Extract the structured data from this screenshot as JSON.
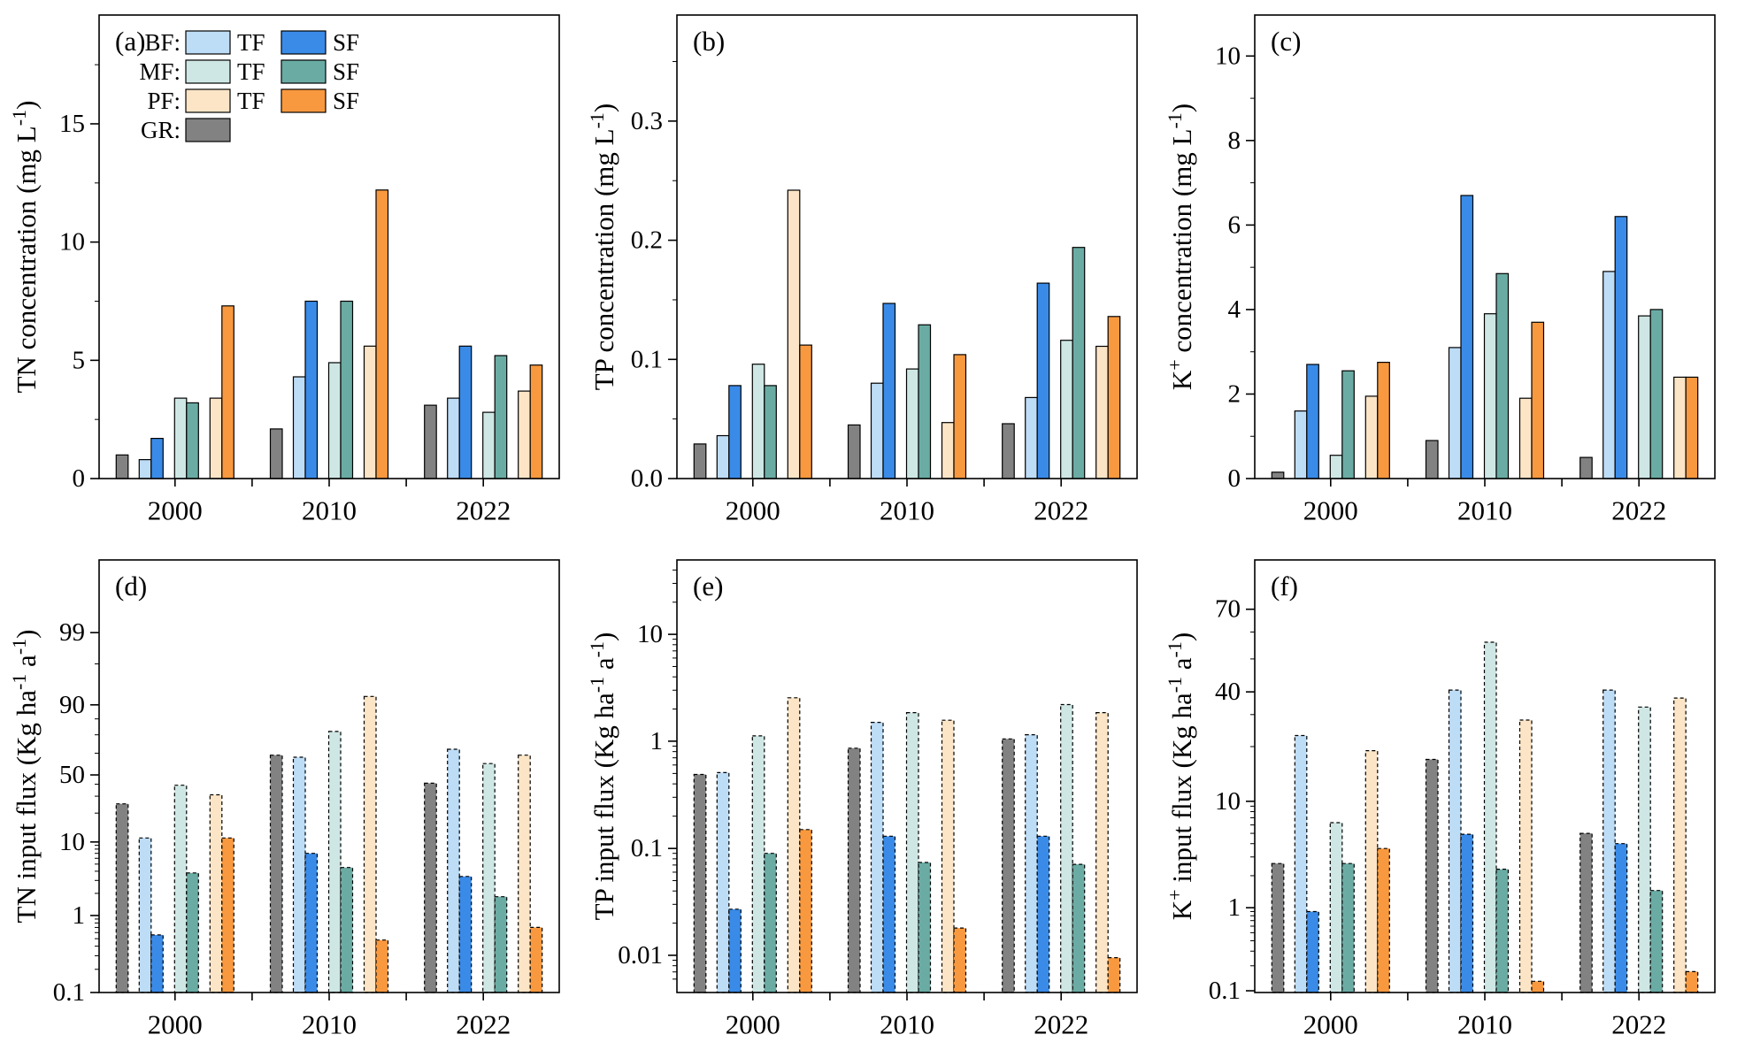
{
  "figure": {
    "background": "#ffffff"
  },
  "series_order": [
    "GR",
    "BF_TF",
    "BF_SF",
    "MF_TF",
    "MF_SF",
    "PF_TF",
    "PF_SF"
  ],
  "series_colors": {
    "GR": "#828282",
    "BF_TF": "#BDDCF6",
    "BF_SF": "#3A8BE8",
    "MF_TF": "#CEE7E4",
    "MF_SF": "#6AACA4",
    "PF_TF": "#FBE5C6",
    "PF_SF": "#F8993F",
    "edge": "#000000"
  },
  "legend": {
    "rows": [
      {
        "group": "BF:",
        "items": [
          {
            "key": "BF_TF",
            "label": "TF"
          },
          {
            "key": "BF_SF",
            "label": "SF"
          }
        ]
      },
      {
        "group": "MF:",
        "items": [
          {
            "key": "MF_TF",
            "label": "TF"
          },
          {
            "key": "MF_SF",
            "label": "SF"
          }
        ]
      },
      {
        "group": "PF:",
        "items": [
          {
            "key": "PF_TF",
            "label": "TF"
          },
          {
            "key": "PF_SF",
            "label": "SF"
          }
        ]
      },
      {
        "group": "GR:",
        "items": [
          {
            "key": "GR",
            "label": ""
          }
        ]
      }
    ]
  },
  "chart_data": [
    {
      "id": "a",
      "panel_label": "(a)",
      "type": "bar",
      "row": 0,
      "col": 0,
      "ylabel": "TN concentration (mg L⁻¹)",
      "ylabel_parts": [
        [
          "TN concentration (mg L",
          0
        ],
        [
          "-1",
          1
        ],
        [
          ")",
          0
        ]
      ],
      "scale": {
        "type": "linear",
        "min": 0,
        "max": 19.6
      },
      "yticks": [
        {
          "v": 0,
          "l": "0"
        },
        {
          "v": 5,
          "l": "5"
        },
        {
          "v": 10,
          "l": "10"
        },
        {
          "v": 15,
          "l": "15"
        }
      ],
      "minors": [
        2.5,
        7.5,
        12.5,
        17.5
      ],
      "categories": [
        "2000",
        "2010",
        "2022"
      ],
      "dashed": false,
      "series": {
        "GR": [
          1.0,
          2.1,
          3.1
        ],
        "BF_TF": [
          0.8,
          4.3,
          3.4
        ],
        "BF_SF": [
          1.7,
          7.5,
          5.6
        ],
        "MF_TF": [
          3.4,
          4.9,
          2.8
        ],
        "MF_SF": [
          3.2,
          7.5,
          5.2
        ],
        "PF_TF": [
          3.4,
          5.6,
          3.7
        ],
        "PF_SF": [
          7.3,
          12.2,
          4.8
        ]
      }
    },
    {
      "id": "b",
      "panel_label": "(b)",
      "type": "bar",
      "row": 0,
      "col": 1,
      "ylabel": "TP concentration (mg L⁻¹)",
      "ylabel_parts": [
        [
          "TP concentration (mg L",
          0
        ],
        [
          "-1",
          1
        ],
        [
          ")",
          0
        ]
      ],
      "scale": {
        "type": "linear",
        "min": 0,
        "max": 0.389
      },
      "yticks": [
        {
          "v": 0,
          "l": "0.0"
        },
        {
          "v": 0.1,
          "l": "0.1"
        },
        {
          "v": 0.2,
          "l": "0.2"
        },
        {
          "v": 0.3,
          "l": "0.3"
        }
      ],
      "minors": [
        0.05,
        0.15,
        0.25,
        0.35
      ],
      "categories": [
        "2000",
        "2010",
        "2022"
      ],
      "dashed": false,
      "series": {
        "GR": [
          0.029,
          0.045,
          0.046
        ],
        "BF_TF": [
          0.036,
          0.08,
          0.068
        ],
        "BF_SF": [
          0.078,
          0.147,
          0.164
        ],
        "MF_TF": [
          0.096,
          0.092,
          0.116
        ],
        "MF_SF": [
          0.078,
          0.129,
          0.194
        ],
        "PF_TF": [
          0.242,
          0.047,
          0.111
        ],
        "PF_SF": [
          0.112,
          0.104,
          0.136
        ]
      }
    },
    {
      "id": "c",
      "panel_label": "(c)",
      "type": "bar",
      "row": 0,
      "col": 2,
      "ylabel": "K⁺ concentration (mg L⁻¹)",
      "ylabel_parts": [
        [
          "K",
          1
        ],
        [
          " concentration (mg L",
          0
        ],
        [
          "-1",
          1
        ],
        [
          ")",
          0
        ]
      ],
      "ylabel_first_sup": "+",
      "scale": {
        "type": "linear",
        "min": 0,
        "max": 10.97
      },
      "yticks": [
        {
          "v": 0,
          "l": "0"
        },
        {
          "v": 2,
          "l": "2"
        },
        {
          "v": 4,
          "l": "4"
        },
        {
          "v": 6,
          "l": "6"
        },
        {
          "v": 8,
          "l": "8"
        },
        {
          "v": 10,
          "l": "10"
        }
      ],
      "minors": [
        1,
        3,
        5,
        7,
        9
      ],
      "categories": [
        "2000",
        "2010",
        "2022"
      ],
      "dashed": false,
      "series": {
        "GR": [
          0.15,
          0.9,
          0.5
        ],
        "BF_TF": [
          1.6,
          3.1,
          4.9
        ],
        "BF_SF": [
          2.7,
          6.7,
          6.2
        ],
        "MF_TF": [
          0.55,
          3.9,
          3.85
        ],
        "MF_SF": [
          2.55,
          4.85,
          4.0
        ],
        "PF_TF": [
          1.95,
          1.9,
          2.4
        ],
        "PF_SF": [
          2.75,
          3.7,
          2.4
        ]
      }
    },
    {
      "id": "d",
      "panel_label": "(d)",
      "type": "bar",
      "row": 1,
      "col": 0,
      "ylabel": "TN input flux (Kg ha⁻¹ a⁻¹)",
      "ylabel_parts": [
        [
          "TN input flux (Kg ha",
          0
        ],
        [
          "-1",
          1
        ],
        [
          " a",
          0
        ],
        [
          "-1",
          1
        ],
        [
          ")",
          0
        ]
      ],
      "scale": {
        "type": "anchors",
        "anchors": [
          [
            0.1,
            0.0
          ],
          [
            1,
            0.178
          ],
          [
            10,
            0.348
          ],
          [
            50,
            0.503
          ],
          [
            90,
            0.665
          ],
          [
            99,
            0.832
          ]
        ]
      },
      "yticks": [
        {
          "v": 0.1,
          "l": "0.1"
        },
        {
          "v": 1,
          "l": "1"
        },
        {
          "v": 10,
          "l": "10"
        },
        {
          "v": 50,
          "l": "50"
        },
        {
          "v": 90,
          "l": "90"
        },
        {
          "v": 99,
          "l": "99"
        }
      ],
      "minors": [
        0.2,
        0.3,
        0.4,
        0.5,
        0.6,
        0.7,
        0.8,
        0.9,
        2,
        3,
        4,
        5,
        6,
        7,
        8,
        9,
        20,
        30,
        40,
        60,
        70,
        80,
        95
      ],
      "categories": [
        "2000",
        "2010",
        "2022"
      ],
      "dashed": true,
      "series": {
        "GR": [
          25,
          59,
          41
        ],
        "BF_TF": [
          11,
          58,
          62
        ],
        "BF_SF": [
          0.56,
          7.0,
          3.4
        ],
        "MF_TF": [
          39,
          72,
          55
        ],
        "MF_SF": [
          3.8,
          4.5,
          1.8
        ],
        "PF_TF": [
          31,
          91,
          59
        ],
        "PF_SF": [
          11,
          0.48,
          0.7
        ]
      }
    },
    {
      "id": "e",
      "panel_label": "(e)",
      "type": "bar",
      "row": 1,
      "col": 1,
      "ylabel": "TP input flux (Kg ha⁻¹ a⁻¹)",
      "ylabel_parts": [
        [
          "TP input flux (Kg ha",
          0
        ],
        [
          "-1",
          1
        ],
        [
          " a",
          0
        ],
        [
          "-1",
          1
        ],
        [
          ")",
          0
        ]
      ],
      "scale": {
        "type": "anchors",
        "anchors": [
          [
            0.0045,
            0.0
          ],
          [
            0.01,
            0.086
          ],
          [
            0.1,
            0.333
          ],
          [
            1,
            0.581
          ],
          [
            10,
            0.828
          ]
        ]
      },
      "yticks": [
        {
          "v": 0.01,
          "l": "0.01"
        },
        {
          "v": 0.1,
          "l": "0.1"
        },
        {
          "v": 1,
          "l": "1"
        },
        {
          "v": 10,
          "l": "10"
        }
      ],
      "minors": [
        0.006,
        0.007,
        0.008,
        0.009,
        0.02,
        0.03,
        0.04,
        0.05,
        0.06,
        0.07,
        0.08,
        0.09,
        0.2,
        0.3,
        0.4,
        0.5,
        0.6,
        0.7,
        0.8,
        0.9,
        2,
        3,
        4,
        5,
        6,
        7,
        8,
        9,
        20,
        30,
        40
      ],
      "categories": [
        "2000",
        "2010",
        "2022"
      ],
      "dashed": true,
      "series": {
        "GR": [
          0.49,
          0.86,
          1.05
        ],
        "BF_TF": [
          0.51,
          1.5,
          1.15
        ],
        "BF_SF": [
          0.027,
          0.13,
          0.13
        ],
        "MF_TF": [
          1.12,
          1.85,
          2.2
        ],
        "MF_SF": [
          0.09,
          0.074,
          0.071
        ],
        "PF_TF": [
          2.55,
          1.57,
          1.85
        ],
        "PF_SF": [
          0.15,
          0.018,
          0.0095
        ]
      }
    },
    {
      "id": "f",
      "panel_label": "(f)",
      "type": "bar",
      "row": 1,
      "col": 2,
      "ylabel": "K⁺ input flux (Kg ha⁻¹ a⁻¹)",
      "ylabel_parts": [
        [
          "K",
          1
        ],
        [
          " input flux (Kg ha",
          0
        ],
        [
          "-1",
          1
        ],
        [
          " a",
          0
        ],
        [
          "-1",
          1
        ],
        [
          ")",
          0
        ]
      ],
      "ylabel_first_sup": "+",
      "scale": {
        "type": "anchors",
        "anchors": [
          [
            0.1,
            0.004
          ],
          [
            1,
            0.196
          ],
          [
            10,
            0.442
          ],
          [
            40,
            0.695
          ],
          [
            70,
            0.886
          ]
        ]
      },
      "yticks": [
        {
          "v": 0.1,
          "l": "0.1"
        },
        {
          "v": 1,
          "l": "1"
        },
        {
          "v": 10,
          "l": "10"
        },
        {
          "v": 40,
          "l": "40"
        },
        {
          "v": 70,
          "l": "70"
        }
      ],
      "minors": [
        0.2,
        0.3,
        0.4,
        0.5,
        0.6,
        0.7,
        0.8,
        0.9,
        2,
        3,
        4,
        5,
        6,
        7,
        8,
        9,
        20,
        30,
        50,
        60
      ],
      "categories": [
        "2000",
        "2010",
        "2022"
      ],
      "dashed": true,
      "series": {
        "GR": [
          2.6,
          17,
          5.0
        ],
        "BF_TF": [
          23,
          40.5,
          40.5
        ],
        "BF_SF": [
          0.9,
          4.9,
          4.0
        ],
        "MF_TF": [
          6.3,
          56,
          33
        ],
        "MF_SF": [
          2.6,
          2.3,
          1.45
        ],
        "PF_TF": [
          19,
          28,
          37
        ],
        "PF_SF": [
          3.6,
          0.13,
          0.17
        ]
      }
    }
  ]
}
